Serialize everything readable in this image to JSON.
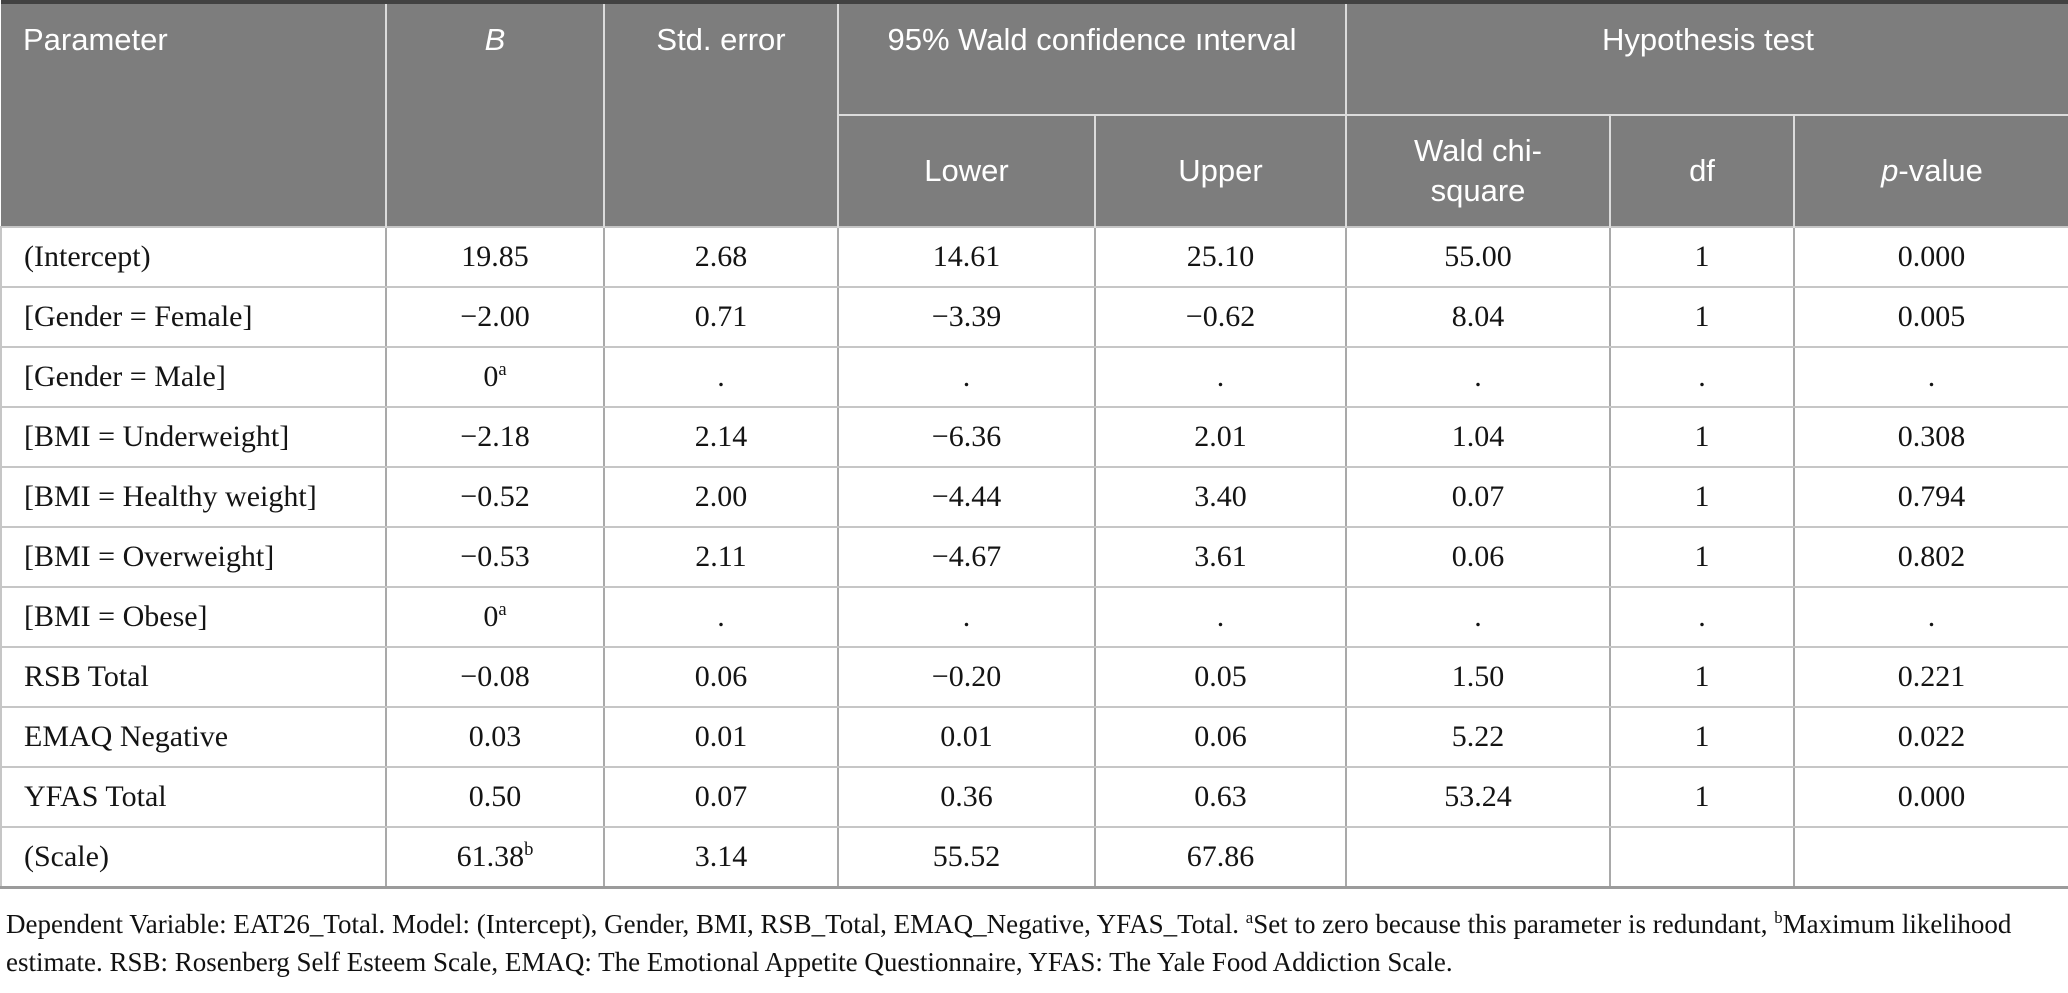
{
  "table": {
    "header": {
      "parameter": "Parameter",
      "b": "*B*",
      "std_error": "Std. error",
      "ci_group": "95% Wald confidence ınterval",
      "hypothesis_group": "Hypothesis test",
      "lower": "Lower",
      "upper": "Upper",
      "wald_chi_square": "Wald chi-square",
      "df": "df",
      "p_value": "*p*-value"
    },
    "rows": [
      [
        "(Intercept)",
        "19.85",
        "2.68",
        "14.61",
        "25.10",
        "55.00",
        "1",
        "0.000"
      ],
      [
        "[Gender = Female]",
        "−2.00",
        "0.71",
        "−3.39",
        "−0.62",
        "8.04",
        "1",
        "0.005"
      ],
      [
        "[Gender = Male]",
        "0^a",
        ".",
        ".",
        ".",
        ".",
        ".",
        "."
      ],
      [
        "[BMI = Underweight]",
        "−2.18",
        "2.14",
        "−6.36",
        "2.01",
        "1.04",
        "1",
        "0.308"
      ],
      [
        "[BMI = Healthy weight]",
        "−0.52",
        "2.00",
        "−4.44",
        "3.40",
        "0.07",
        "1",
        "0.794"
      ],
      [
        "[BMI = Overweight]",
        "−0.53",
        "2.11",
        "−4.67",
        "3.61",
        "0.06",
        "1",
        "0.802"
      ],
      [
        "[BMI = Obese]",
        "0^a",
        ".",
        ".",
        ".",
        ".",
        ".",
        "."
      ],
      [
        "RSB Total",
        "−0.08",
        "0.06",
        "−0.20",
        "0.05",
        "1.50",
        "1",
        "0.221"
      ],
      [
        "EMAQ Negative",
        "0.03",
        "0.01",
        "0.01",
        "0.06",
        "5.22",
        "1",
        "0.022"
      ],
      [
        "YFAS Total",
        "0.50",
        "0.07",
        "0.36",
        "0.63",
        "53.24",
        "1",
        "0.000"
      ],
      [
        "(Scale)",
        "61.38^b",
        "3.14",
        "55.52",
        "67.86",
        "",
        "",
        ""
      ]
    ]
  },
  "footnote": "Dependent Variable: EAT26_Total. Model: (Intercept), Gender, BMI, RSB_Total, EMAQ_Negative, YFAS_Total. ^aSet to zero because this parameter is redundant, ^bMaximum likelihood estimate. RSB: Rosenberg Self Esteem Scale, EMAQ: The Emotional Appetite Questionnaire, YFAS: The Yale Food Addiction Scale.",
  "colors": {
    "header_bg": "#7d7d7d",
    "header_text": "#ffffff",
    "body_text": "#141414",
    "row_divider": "#c6c6c6",
    "column_divider": "#a9a9a9",
    "table_top_border": "#424242",
    "table_bottom_border": "#9b9b9b"
  }
}
